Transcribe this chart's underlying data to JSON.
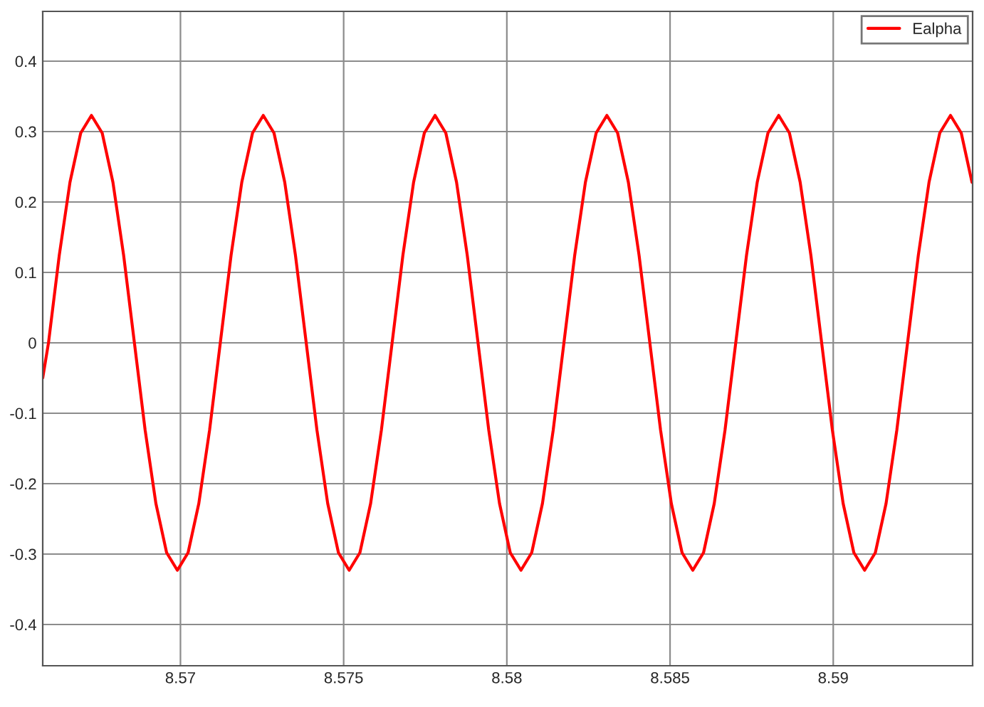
{
  "chart_data": {
    "type": "line",
    "x": [
      8.56578,
      8.565957,
      8.566286,
      8.566615,
      8.566944,
      8.567273,
      8.567602,
      8.567931,
      8.56826,
      8.568589,
      8.568918,
      8.569247,
      8.569576,
      8.569905,
      8.570234,
      8.570563,
      8.570892,
      8.571221,
      8.57155,
      8.571879,
      8.572208,
      8.572537,
      8.572866,
      8.573195,
      8.573524,
      8.573853,
      8.574182,
      8.574511,
      8.57484,
      8.575169,
      8.575498,
      8.575827,
      8.576156,
      8.576485,
      8.576814,
      8.577143,
      8.577472,
      8.577801,
      8.57813,
      8.578459,
      8.578788,
      8.579117,
      8.579446,
      8.579775,
      8.580104,
      8.580433,
      8.580762,
      8.581091,
      8.58142,
      8.581749,
      8.582078,
      8.582407,
      8.582736,
      8.583065,
      8.583394,
      8.583723,
      8.584052,
      8.584381,
      8.58471,
      8.585039,
      8.585368,
      8.585697,
      8.586026,
      8.586355,
      8.586684,
      8.587013,
      8.587342,
      8.587671,
      8.588,
      8.588329,
      8.588658,
      8.588987,
      8.589316,
      8.589645,
      8.589974,
      8.590303,
      8.590632,
      8.590961,
      8.59129,
      8.591619,
      8.591948,
      8.592277,
      8.592606,
      8.592935,
      8.593264,
      8.593593,
      8.593922,
      8.594251
    ],
    "series": [
      {
        "name": "Ealpha",
        "color": "#ff0000",
        "values": [
          -0.05,
          0,
          0.124,
          0.228,
          0.298,
          0.323,
          0.298,
          0.228,
          0.124,
          0,
          -0.124,
          -0.228,
          -0.298,
          -0.323,
          -0.298,
          -0.228,
          -0.124,
          0,
          0.124,
          0.228,
          0.298,
          0.323,
          0.298,
          0.228,
          0.124,
          0,
          -0.124,
          -0.228,
          -0.298,
          -0.323,
          -0.298,
          -0.228,
          -0.124,
          0,
          0.124,
          0.228,
          0.298,
          0.323,
          0.298,
          0.228,
          0.124,
          0,
          -0.124,
          -0.228,
          -0.298,
          -0.323,
          -0.298,
          -0.228,
          -0.124,
          0,
          0.124,
          0.228,
          0.298,
          0.323,
          0.298,
          0.228,
          0.124,
          0,
          -0.124,
          -0.228,
          -0.298,
          -0.323,
          -0.298,
          -0.228,
          -0.124,
          0,
          0.124,
          0.228,
          0.298,
          0.323,
          0.298,
          0.228,
          0.124,
          0,
          -0.124,
          -0.228,
          -0.298,
          -0.323,
          -0.298,
          -0.228,
          -0.124,
          0,
          0.124,
          0.228,
          0.298,
          0.323,
          0.298,
          0.228
        ]
      }
    ],
    "xlim": [
      8.56578,
      8.59427
    ],
    "ylim": [
      -0.4586,
      0.4707
    ],
    "xticks": [
      8.57,
      8.575,
      8.58,
      8.585,
      8.59
    ],
    "yticks": [
      -0.4,
      -0.3,
      -0.2,
      -0.1,
      0,
      0.1,
      0.2,
      0.3,
      0.4
    ],
    "grid": true,
    "legend": "top right",
    "line_style": "solid"
  }
}
